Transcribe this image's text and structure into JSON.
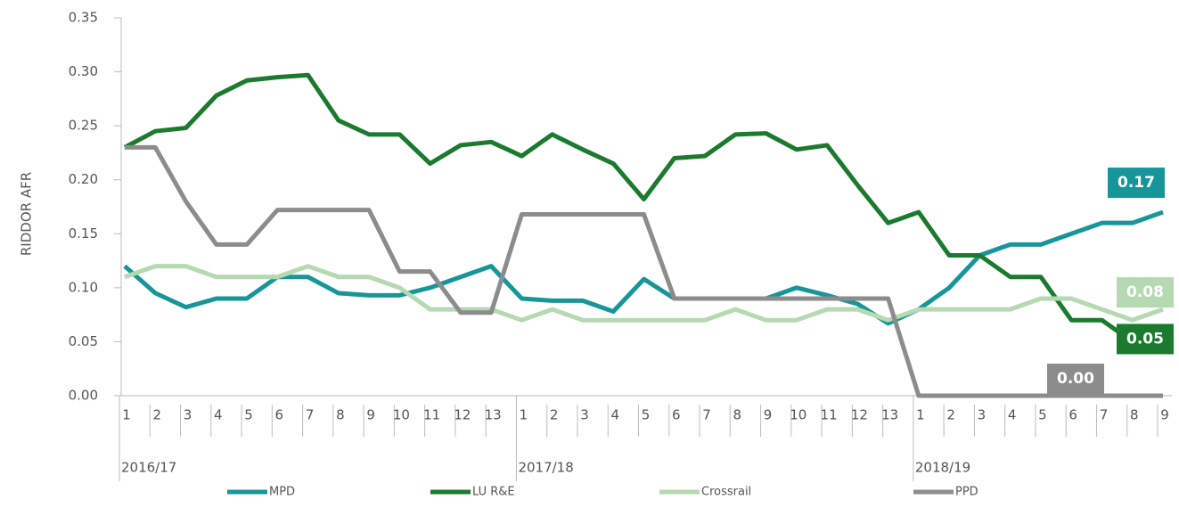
{
  "chart_data": {
    "type": "line",
    "y_label": "RIDDOR AFR",
    "groups": [
      "2016/17",
      "2017/18",
      "2018/19"
    ],
    "categories": [
      "1",
      "2",
      "3",
      "4",
      "5",
      "6",
      "7",
      "8",
      "9",
      "10",
      "11",
      "12",
      "13",
      "1",
      "2",
      "3",
      "4",
      "5",
      "6",
      "7",
      "8",
      "9",
      "10",
      "11",
      "12",
      "13",
      "1",
      "2",
      "3",
      "4",
      "5",
      "6",
      "7",
      "8",
      "9"
    ],
    "ylim": [
      0,
      0.35
    ],
    "yticks": [
      {
        "value": 0,
        "label": "0.00"
      },
      {
        "value": 0.05,
        "label": "0.05"
      },
      {
        "value": 0.1,
        "label": "0.10"
      },
      {
        "value": 0.15,
        "label": "0.15"
      },
      {
        "value": 0.2,
        "label": "0.20"
      },
      {
        "value": 0.25,
        "label": "0.25"
      },
      {
        "value": 0.3,
        "label": "0.30"
      },
      {
        "value": 0.35,
        "label": "0.35"
      }
    ],
    "series": [
      {
        "name": "MPD",
        "color": "#17969a",
        "values": [
          0.12,
          0.095,
          0.082,
          0.09,
          0.09,
          0.11,
          0.11,
          0.095,
          0.093,
          0.093,
          0.1,
          0.11,
          0.12,
          0.09,
          0.088,
          0.088,
          0.078,
          0.108,
          0.09,
          0.09,
          0.09,
          0.09,
          0.1,
          0.093,
          0.085,
          0.067,
          0.08,
          0.1,
          0.13,
          0.14,
          0.14,
          0.15,
          0.16,
          0.16,
          0.17
        ],
        "value_labels": [
          null,
          null,
          null,
          null,
          null,
          null,
          null,
          null,
          null,
          null,
          null,
          null,
          null,
          null,
          null,
          null,
          null,
          null,
          null,
          null,
          null,
          null,
          null,
          null,
          null,
          null,
          null,
          null,
          null,
          null,
          null,
          null,
          null,
          null,
          "0.17"
        ]
      },
      {
        "name": "LU R&E",
        "color": "#1b7a2e",
        "values": [
          0.23,
          0.245,
          0.248,
          0.278,
          0.292,
          0.295,
          0.297,
          0.255,
          0.242,
          0.242,
          0.215,
          0.232,
          0.235,
          0.222,
          0.242,
          0.228,
          0.215,
          0.182,
          0.22,
          0.222,
          0.242,
          0.243,
          0.228,
          0.232,
          0.195,
          0.16,
          0.17,
          0.13,
          0.13,
          0.11,
          0.11,
          0.07,
          0.07,
          0.05,
          0.05
        ],
        "value_labels": [
          null,
          null,
          null,
          null,
          null,
          null,
          null,
          null,
          null,
          null,
          null,
          null,
          null,
          null,
          null,
          null,
          null,
          null,
          null,
          null,
          null,
          null,
          null,
          null,
          null,
          null,
          null,
          null,
          null,
          null,
          null,
          null,
          null,
          null,
          "0.05"
        ]
      },
      {
        "name": "Crossrail",
        "color": "#b5d9b0",
        "values": [
          0.11,
          0.12,
          0.12,
          0.11,
          0.11,
          0.11,
          0.12,
          0.11,
          0.11,
          0.1,
          0.08,
          0.08,
          0.08,
          0.07,
          0.08,
          0.07,
          0.07,
          0.07,
          0.07,
          0.07,
          0.08,
          0.07,
          0.07,
          0.08,
          0.08,
          0.07,
          0.08,
          0.08,
          0.08,
          0.08,
          0.09,
          0.09,
          0.08,
          0.07,
          0.08
        ],
        "value_labels": [
          null,
          null,
          null,
          null,
          null,
          null,
          null,
          null,
          null,
          null,
          null,
          null,
          null,
          null,
          null,
          null,
          null,
          null,
          null,
          null,
          null,
          null,
          null,
          null,
          null,
          null,
          null,
          null,
          null,
          null,
          null,
          null,
          null,
          null,
          "0.08"
        ]
      },
      {
        "name": "PPD",
        "color": "#8c8c8c",
        "values": [
          0.23,
          0.23,
          0.18,
          0.14,
          0.14,
          0.172,
          0.172,
          0.172,
          0.172,
          0.115,
          0.115,
          0.077,
          0.077,
          0.168,
          0.168,
          0.168,
          0.168,
          0.168,
          0.09,
          0.09,
          0.09,
          0.09,
          0.09,
          0.09,
          0.09,
          0.09,
          0,
          0,
          0,
          0,
          0,
          0,
          0,
          0,
          0
        ],
        "value_labels": [
          null,
          null,
          null,
          null,
          null,
          null,
          null,
          null,
          null,
          null,
          null,
          null,
          null,
          null,
          null,
          null,
          null,
          null,
          null,
          null,
          null,
          null,
          null,
          null,
          null,
          null,
          null,
          null,
          null,
          null,
          null,
          null,
          null,
          null,
          "0.00"
        ]
      }
    ]
  }
}
